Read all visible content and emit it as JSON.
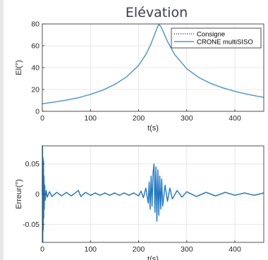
{
  "chart_data": [
    {
      "type": "line",
      "title": "Elévation",
      "xlabel": "t(s)",
      "ylabel": "El(°)",
      "xlim": [
        0,
        460
      ],
      "ylim": [
        0,
        80
      ],
      "x_ticks": [
        "0",
        "100",
        "200",
        "300",
        "400"
      ],
      "y_ticks": [
        "0",
        "20",
        "40",
        "60",
        "80"
      ],
      "grid": true,
      "legend": {
        "placement": "top-right",
        "entries": [
          "Consigne",
          "CRONE multiSISO"
        ]
      },
      "series": [
        {
          "name": "Consigne",
          "style": "dotted",
          "color": "#000000",
          "x": [
            0,
            25,
            50,
            75,
            100,
            125,
            150,
            175,
            200,
            215,
            225,
            232,
            238,
            242,
            246,
            252,
            260,
            275,
            300,
            325,
            350,
            375,
            400,
            425,
            450,
            460
          ],
          "y": [
            7,
            8.5,
            10.3,
            12.5,
            15.5,
            19.3,
            24.5,
            31.5,
            42,
            52,
            61,
            69,
            76,
            79.5,
            78,
            72,
            64,
            52,
            39,
            31,
            25.5,
            21.5,
            18.3,
            15.7,
            13.6,
            12.8
          ]
        },
        {
          "name": "CRONE multiSISO",
          "style": "solid",
          "color": "#4a95d6",
          "x": [
            0,
            25,
            50,
            75,
            100,
            125,
            150,
            175,
            200,
            215,
            225,
            232,
            238,
            242,
            246,
            252,
            260,
            275,
            300,
            325,
            350,
            375,
            400,
            425,
            450,
            460
          ],
          "y": [
            7,
            8.5,
            10.3,
            12.5,
            15.5,
            19.3,
            24.5,
            31.5,
            42,
            52,
            61,
            69,
            76,
            79.5,
            78,
            72,
            64,
            52,
            39,
            31,
            25.5,
            21.5,
            18.3,
            15.7,
            13.6,
            12.8
          ]
        }
      ]
    },
    {
      "type": "line",
      "title": "",
      "xlabel": "t(s)",
      "ylabel": "Erreur(°)",
      "xlim": [
        0,
        460
      ],
      "ylim": [
        -0.08,
        0.08
      ],
      "x_ticks": [
        "0",
        "100",
        "200",
        "300",
        "400"
      ],
      "y_ticks": [
        "-0.05",
        "0",
        "0.05"
      ],
      "grid": true,
      "series": [
        {
          "color": "#1f77c4",
          "x": [
            0,
            0.5,
            1,
            1.5,
            2,
            2.5,
            3,
            3.5,
            4,
            5,
            6,
            8,
            10,
            15,
            20,
            30,
            40,
            50,
            60,
            70,
            75,
            80,
            90,
            100,
            110,
            120,
            130,
            140,
            150,
            160,
            170,
            180,
            190,
            200,
            205,
            210,
            215,
            220,
            222,
            224,
            226,
            228,
            230,
            232,
            234,
            236,
            238,
            240,
            242,
            244,
            246,
            248,
            250,
            255,
            260,
            265,
            270,
            280,
            290,
            300,
            320,
            340,
            360,
            380,
            400,
            420,
            440,
            460
          ],
          "y": [
            0,
            0.08,
            -0.08,
            0.06,
            -0.06,
            0.055,
            -0.04,
            0.03,
            -0.025,
            0.015,
            -0.01,
            0.006,
            -0.005,
            0.004,
            -0.004,
            0.003,
            -0.003,
            0.003,
            -0.003,
            0.003,
            0.006,
            -0.004,
            0.003,
            -0.002,
            0.002,
            -0.002,
            0.002,
            -0.002,
            0.002,
            -0.002,
            0.002,
            -0.002,
            0.002,
            -0.003,
            0.005,
            -0.006,
            0.01,
            -0.015,
            0.02,
            -0.025,
            0.03,
            -0.02,
            0.035,
            0.05,
            -0.03,
            0.045,
            -0.045,
            0.04,
            -0.035,
            0.03,
            -0.025,
            0.025,
            -0.02,
            0.015,
            -0.012,
            0.01,
            -0.008,
            0.006,
            -0.005,
            0.004,
            -0.004,
            0.003,
            -0.003,
            0.003,
            -0.002,
            0.002,
            -0.002,
            0.002
          ]
        }
      ]
    }
  ]
}
